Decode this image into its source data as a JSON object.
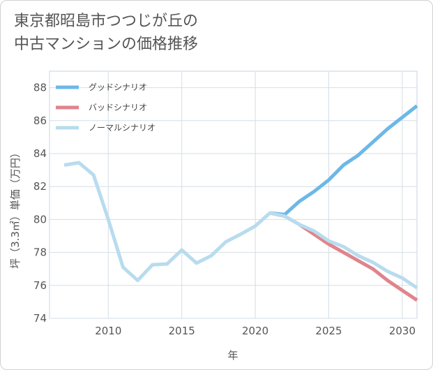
{
  "title_line1": "東京都昭島市つつじが丘の",
  "title_line2": "中古マンションの価格推移",
  "chart_data": {
    "type": "line",
    "title": "東京都昭島市つつじが丘の中古マンションの価格推移",
    "xlabel": "年",
    "ylabel": "坪（3.3㎡）単価（万円）",
    "xlim": [
      2006,
      2031
    ],
    "ylim": [
      74,
      89
    ],
    "xticks": [
      2010,
      2015,
      2020,
      2025,
      2030
    ],
    "yticks": [
      74,
      76,
      78,
      80,
      82,
      84,
      86,
      88
    ],
    "grid": true,
    "legend_position": "top-left",
    "series": [
      {
        "name": "グッドシナリオ",
        "color": "#6cb8e8",
        "x": [
          2021,
          2022,
          2023,
          2024,
          2025,
          2026,
          2027,
          2028,
          2029,
          2030,
          2031
        ],
        "y": [
          80.4,
          80.3,
          81.1,
          81.7,
          82.4,
          83.3,
          83.9,
          84.7,
          85.5,
          86.2,
          86.9
        ]
      },
      {
        "name": "バッドシナリオ",
        "color": "#e0848c",
        "x": [
          2021,
          2022,
          2023,
          2024,
          2025,
          2026,
          2027,
          2028,
          2029,
          2030,
          2031
        ],
        "y": [
          80.4,
          80.2,
          79.7,
          79.1,
          78.5,
          78.0,
          77.5,
          77.0,
          76.3,
          75.7,
          75.1
        ]
      },
      {
        "name": "ノーマルシナリオ",
        "color": "#b8dcee",
        "x": [
          2007,
          2008,
          2009,
          2010,
          2011,
          2012,
          2013,
          2014,
          2015,
          2016,
          2017,
          2018,
          2019,
          2020,
          2021,
          2022,
          2023,
          2024,
          2025,
          2026,
          2027,
          2028,
          2029,
          2030,
          2031
        ],
        "y": [
          83.3,
          83.45,
          82.7,
          80.0,
          77.1,
          76.3,
          77.25,
          77.3,
          78.15,
          77.35,
          77.8,
          78.65,
          79.1,
          79.6,
          80.4,
          80.2,
          79.7,
          79.3,
          78.7,
          78.35,
          77.8,
          77.4,
          76.85,
          76.45,
          75.85
        ]
      }
    ]
  }
}
